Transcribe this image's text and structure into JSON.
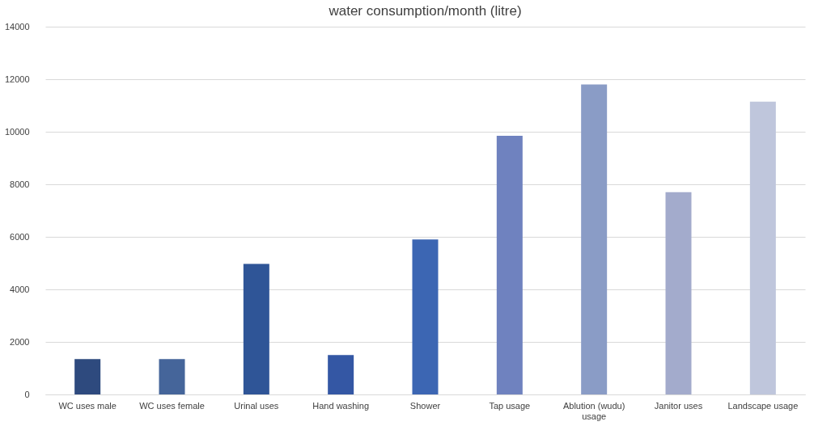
{
  "chart_data": {
    "type": "bar",
    "title": "water consumption/month (litre)",
    "categories": [
      "WC uses male",
      "WC uses female",
      "Urinal uses",
      "Hand washing",
      "Shower",
      "Tap usage",
      "Ablution (wudu) usage",
      "Janitor uses",
      "Landscape usage"
    ],
    "values": [
      1350,
      1350,
      4970,
      1500,
      5900,
      9850,
      11800,
      7700,
      11150
    ],
    "colors": [
      "#2e4a7e",
      "#45659a",
      "#2f5597",
      "#3457a4",
      "#3c66b3",
      "#6f82bf",
      "#8a9cc6",
      "#a3abcc",
      "#bfc6dc"
    ],
    "ylim": [
      0,
      14000
    ],
    "yticks": [
      0,
      2000,
      4000,
      6000,
      8000,
      10000,
      12000,
      14000
    ],
    "grid": "y"
  }
}
